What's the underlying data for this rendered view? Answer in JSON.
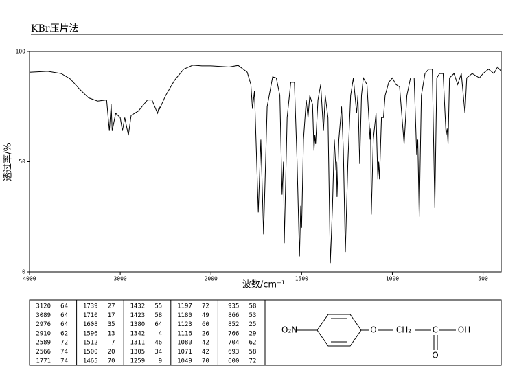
{
  "chart_data": {
    "type": "line",
    "title": "KBr压片法",
    "x_label": "波数/cm⁻¹",
    "y_label": "透过率/%",
    "color": "#000000",
    "xlim": [
      4000,
      400
    ],
    "x_scale_break": 2000,
    "ylim": [
      0,
      100
    ],
    "xticks": [
      4000,
      3000,
      2000,
      1500,
      1000,
      500
    ],
    "yticks": [
      0,
      50,
      100
    ],
    "x": [
      4000,
      3800,
      3650,
      3550,
      3450,
      3350,
      3250,
      3150,
      3120,
      3100,
      3089,
      3050,
      3000,
      2976,
      2950,
      2910,
      2880,
      2800,
      2700,
      2650,
      2589,
      2570,
      2566,
      2500,
      2400,
      2300,
      2200,
      2100,
      2000,
      1900,
      1850,
      1800,
      1780,
      1771,
      1760,
      1739,
      1725,
      1710,
      1690,
      1660,
      1640,
      1620,
      1608,
      1600,
      1596,
      1580,
      1560,
      1540,
      1525,
      1512,
      1505,
      1500,
      1490,
      1475,
      1465,
      1455,
      1440,
      1432,
      1427,
      1423,
      1410,
      1395,
      1380,
      1370,
      1355,
      1342,
      1330,
      1320,
      1311,
      1308,
      1305,
      1295,
      1280,
      1270,
      1259,
      1245,
      1230,
      1215,
      1197,
      1190,
      1180,
      1170,
      1160,
      1140,
      1123,
      1120,
      1116,
      1105,
      1090,
      1080,
      1075,
      1071,
      1060,
      1049,
      1040,
      1020,
      1000,
      980,
      960,
      935,
      920,
      900,
      880,
      866,
      860,
      852,
      840,
      820,
      800,
      780,
      766,
      755,
      740,
      720,
      704,
      698,
      693,
      685,
      660,
      640,
      620,
      600,
      590,
      560,
      540,
      520,
      500,
      470,
      440,
      420,
      400
    ],
    "values": [
      90.6,
      91,
      90,
      87.5,
      83,
      79,
      77.5,
      78,
      64,
      76,
      64,
      72,
      70,
      64,
      70,
      62,
      71,
      73,
      78,
      78,
      72,
      75,
      74,
      80,
      87,
      92,
      93.8,
      93.5,
      93.5,
      93,
      93.7,
      90.6,
      85,
      74,
      82,
      27,
      60,
      17,
      75,
      88.5,
      88,
      80,
      35,
      50,
      13,
      70,
      86,
      86,
      50,
      7,
      30,
      20,
      60,
      78,
      70,
      80,
      76,
      55,
      62,
      58,
      78,
      85,
      64,
      80,
      70,
      4,
      30,
      60,
      46,
      50,
      34,
      60,
      75,
      55,
      9,
      50,
      80,
      88,
      72,
      80,
      49,
      80,
      88,
      85,
      60,
      65,
      26,
      60,
      72,
      42,
      50,
      42,
      70,
      70,
      80,
      86,
      88,
      85,
      84,
      58,
      80,
      88,
      88,
      53,
      60,
      25,
      80,
      90,
      92,
      92,
      29,
      88,
      90,
      90,
      62,
      65,
      58,
      88,
      90,
      85,
      90,
      72,
      88,
      90,
      89,
      88,
      90,
      92,
      90,
      93,
      91
    ]
  },
  "peak_table": [
    [
      [
        3120,
        64
      ],
      [
        3089,
        64
      ],
      [
        2976,
        64
      ],
      [
        2910,
        62
      ],
      [
        2589,
        72
      ],
      [
        2566,
        74
      ],
      [
        1771,
        74
      ]
    ],
    [
      [
        1739,
        27
      ],
      [
        1710,
        17
      ],
      [
        1608,
        35
      ],
      [
        1596,
        13
      ],
      [
        1512,
        7
      ],
      [
        1500,
        20
      ],
      [
        1465,
        70
      ]
    ],
    [
      [
        1432,
        55
      ],
      [
        1423,
        58
      ],
      [
        1380,
        64
      ],
      [
        1342,
        4
      ],
      [
        1311,
        46
      ],
      [
        1305,
        34
      ],
      [
        1259,
        9
      ]
    ],
    [
      [
        1197,
        72
      ],
      [
        1180,
        49
      ],
      [
        1123,
        60
      ],
      [
        1116,
        26
      ],
      [
        1080,
        42
      ],
      [
        1071,
        42
      ],
      [
        1049,
        70
      ]
    ],
    [
      [
        935,
        58
      ],
      [
        866,
        53
      ],
      [
        852,
        25
      ],
      [
        766,
        29
      ],
      [
        704,
        62
      ],
      [
        693,
        58
      ],
      [
        600,
        72
      ]
    ]
  ],
  "structure": {
    "labels": [
      "O₂N",
      "O",
      "CH₂",
      "C",
      "OH",
      "O"
    ]
  }
}
